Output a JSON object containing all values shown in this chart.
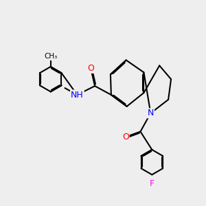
{
  "background_color": "#eeeeee",
  "bond_color": "#000000",
  "bond_width": 1.5,
  "dbo": 0.05,
  "atom_colors": {
    "N": "#0000ff",
    "O": "#ff0000",
    "F": "#ff00ff"
  },
  "font_size": 9,
  "xlim": [
    0,
    10
  ],
  "ylim": [
    0,
    10
  ]
}
